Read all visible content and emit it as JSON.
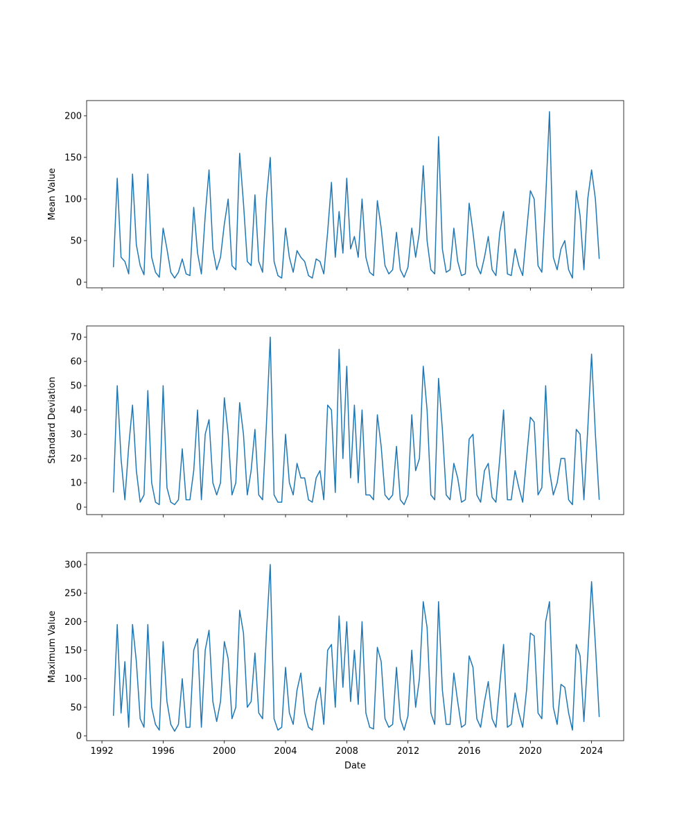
{
  "chart_data": [
    {
      "type": "line",
      "ylabel": "Mean Value",
      "xlim": [
        1991.0,
        2026.1
      ],
      "xticks": [
        1992,
        1996,
        2000,
        2004,
        2008,
        2012,
        2016,
        2020,
        2024
      ],
      "ylim": [
        -6.7,
        218.3
      ],
      "yticks": [
        0,
        50,
        100,
        150,
        200
      ],
      "x": [
        1992.75,
        1993,
        1993.25,
        1993.5,
        1993.75,
        1994,
        1994.25,
        1994.5,
        1994.75,
        1995,
        1995.25,
        1995.5,
        1995.75,
        1996,
        1996.25,
        1996.5,
        1996.75,
        1997,
        1997.25,
        1997.5,
        1997.75,
        1998,
        1998.25,
        1998.5,
        1998.75,
        1999,
        1999.25,
        1999.5,
        1999.75,
        2000,
        2000.25,
        2000.5,
        2000.75,
        2001,
        2001.25,
        2001.5,
        2001.75,
        2002,
        2002.25,
        2002.5,
        2002.75,
        2003,
        2003.25,
        2003.5,
        2003.75,
        2004,
        2004.25,
        2004.5,
        2004.75,
        2005,
        2005.25,
        2005.5,
        2005.75,
        2006,
        2006.25,
        2006.5,
        2006.75,
        2007,
        2007.25,
        2007.5,
        2007.75,
        2008,
        2008.25,
        2008.5,
        2008.75,
        2009,
        2009.25,
        2009.5,
        2009.75,
        2010,
        2010.25,
        2010.5,
        2010.75,
        2011,
        2011.25,
        2011.5,
        2011.75,
        2012,
        2012.25,
        2012.5,
        2012.75,
        2013,
        2013.25,
        2013.5,
        2013.75,
        2014,
        2014.25,
        2014.5,
        2014.75,
        2015,
        2015.25,
        2015.5,
        2015.75,
        2016,
        2016.25,
        2016.5,
        2016.75,
        2017,
        2017.25,
        2017.5,
        2017.75,
        2018,
        2018.25,
        2018.5,
        2018.75,
        2019,
        2019.25,
        2019.5,
        2019.75,
        2020,
        2020.25,
        2020.5,
        2020.75,
        2021,
        2021.25,
        2021.5,
        2021.75,
        2022,
        2022.25,
        2022.5,
        2022.75,
        2023,
        2023.25,
        2023.5,
        2023.75,
        2024,
        2024.25,
        2024.5
      ],
      "series": [
        {
          "color": "#1f77b4",
          "values": [
            18,
            125,
            30,
            25,
            10,
            130,
            45,
            20,
            9,
            130,
            30,
            12,
            6,
            65,
            40,
            12,
            5,
            12,
            28,
            10,
            8,
            90,
            35,
            10,
            80,
            135,
            40,
            15,
            30,
            70,
            100,
            20,
            15,
            155,
            95,
            25,
            20,
            105,
            25,
            12,
            100,
            150,
            25,
            8,
            5,
            65,
            30,
            12,
            38,
            30,
            25,
            8,
            5,
            28,
            25,
            10,
            60,
            120,
            30,
            85,
            35,
            125,
            40,
            55,
            30,
            100,
            30,
            12,
            8,
            98,
            65,
            20,
            10,
            15,
            60,
            15,
            6,
            18,
            65,
            30,
            60,
            140,
            50,
            15,
            10,
            175,
            40,
            12,
            15,
            65,
            25,
            8,
            10,
            95,
            60,
            20,
            10,
            30,
            55,
            15,
            8,
            60,
            85,
            10,
            8,
            40,
            20,
            8,
            60,
            110,
            100,
            20,
            12,
            100,
            205,
            30,
            15,
            40,
            50,
            15,
            5,
            110,
            80,
            15,
            100,
            135,
            100,
            28
          ]
        }
      ]
    },
    {
      "type": "line",
      "ylabel": "Standard Deviation",
      "xlim": [
        1991.0,
        2026.1
      ],
      "xticks": [
        1992,
        1996,
        2000,
        2004,
        2008,
        2012,
        2016,
        2020,
        2024
      ],
      "ylim": [
        -3.1,
        74.6
      ],
      "yticks": [
        0,
        10,
        20,
        30,
        40,
        50,
        60,
        70
      ],
      "x": [
        1992.75,
        1993,
        1993.25,
        1993.5,
        1993.75,
        1994,
        1994.25,
        1994.5,
        1994.75,
        1995,
        1995.25,
        1995.5,
        1995.75,
        1996,
        1996.25,
        1996.5,
        1996.75,
        1997,
        1997.25,
        1997.5,
        1997.75,
        1998,
        1998.25,
        1998.5,
        1998.75,
        1999,
        1999.25,
        1999.5,
        1999.75,
        2000,
        2000.25,
        2000.5,
        2000.75,
        2001,
        2001.25,
        2001.5,
        2001.75,
        2002,
        2002.25,
        2002.5,
        2002.75,
        2003,
        2003.25,
        2003.5,
        2003.75,
        2004,
        2004.25,
        2004.5,
        2004.75,
        2005,
        2005.25,
        2005.5,
        2005.75,
        2006,
        2006.25,
        2006.5,
        2006.75,
        2007,
        2007.25,
        2007.5,
        2007.75,
        2008,
        2008.25,
        2008.5,
        2008.75,
        2009,
        2009.25,
        2009.5,
        2009.75,
        2010,
        2010.25,
        2010.5,
        2010.75,
        2011,
        2011.25,
        2011.5,
        2011.75,
        2012,
        2012.25,
        2012.5,
        2012.75,
        2013,
        2013.25,
        2013.5,
        2013.75,
        2014,
        2014.25,
        2014.5,
        2014.75,
        2015,
        2015.25,
        2015.5,
        2015.75,
        2016,
        2016.25,
        2016.5,
        2016.75,
        2017,
        2017.25,
        2017.5,
        2017.75,
        2018,
        2018.25,
        2018.5,
        2018.75,
        2019,
        2019.25,
        2019.5,
        2019.75,
        2020,
        2020.25,
        2020.5,
        2020.75,
        2021,
        2021.25,
        2021.5,
        2021.75,
        2022,
        2022.25,
        2022.5,
        2022.75,
        2023,
        2023.25,
        2023.5,
        2023.75,
        2024,
        2024.25,
        2024.5
      ],
      "series": [
        {
          "color": "#1f77b4",
          "values": [
            6,
            50,
            20,
            3,
            25,
            42,
            15,
            2,
            5,
            48,
            10,
            2,
            1,
            50,
            8,
            2,
            1,
            3,
            24,
            3,
            3,
            15,
            40,
            3,
            30,
            36,
            10,
            5,
            10,
            45,
            30,
            5,
            10,
            43,
            30,
            5,
            15,
            32,
            5,
            3,
            34,
            70,
            5,
            2,
            2,
            30,
            10,
            5,
            18,
            12,
            12,
            3,
            2,
            12,
            15,
            3,
            42,
            40,
            6,
            65,
            20,
            58,
            12,
            42,
            10,
            40,
            5,
            5,
            3,
            38,
            25,
            5,
            3,
            5,
            25,
            3,
            1,
            5,
            38,
            15,
            20,
            58,
            40,
            5,
            3,
            53,
            32,
            5,
            3,
            18,
            12,
            2,
            3,
            28,
            30,
            5,
            2,
            15,
            18,
            4,
            2,
            20,
            40,
            3,
            3,
            15,
            8,
            2,
            20,
            37,
            35,
            5,
            8,
            50,
            15,
            5,
            10,
            20,
            20,
            3,
            1,
            32,
            30,
            3,
            32,
            63,
            30,
            3
          ]
        }
      ]
    },
    {
      "type": "line",
      "xlabel": "Date",
      "ylabel": "Maximum Value",
      "xlim": [
        1991.0,
        2026.1
      ],
      "xticks": [
        1992,
        1996,
        2000,
        2004,
        2008,
        2012,
        2016,
        2020,
        2024
      ],
      "ylim": [
        -8.5,
        320.7
      ],
      "yticks": [
        0,
        50,
        100,
        150,
        200,
        250,
        300
      ],
      "x": [
        1992.75,
        1993,
        1993.25,
        1993.5,
        1993.75,
        1994,
        1994.25,
        1994.5,
        1994.75,
        1995,
        1995.25,
        1995.5,
        1995.75,
        1996,
        1996.25,
        1996.5,
        1996.75,
        1997,
        1997.25,
        1997.5,
        1997.75,
        1998,
        1998.25,
        1998.5,
        1998.75,
        1999,
        1999.25,
        1999.5,
        1999.75,
        2000,
        2000.25,
        2000.5,
        2000.75,
        2001,
        2001.25,
        2001.5,
        2001.75,
        2002,
        2002.25,
        2002.5,
        2002.75,
        2003,
        2003.25,
        2003.5,
        2003.75,
        2004,
        2004.25,
        2004.5,
        2004.75,
        2005,
        2005.25,
        2005.5,
        2005.75,
        2006,
        2006.25,
        2006.5,
        2006.75,
        2007,
        2007.25,
        2007.5,
        2007.75,
        2008,
        2008.25,
        2008.5,
        2008.75,
        2009,
        2009.25,
        2009.5,
        2009.75,
        2010,
        2010.25,
        2010.5,
        2010.75,
        2011,
        2011.25,
        2011.5,
        2011.75,
        2012,
        2012.25,
        2012.5,
        2012.75,
        2013,
        2013.25,
        2013.5,
        2013.75,
        2014,
        2014.25,
        2014.5,
        2014.75,
        2015,
        2015.25,
        2015.5,
        2015.75,
        2016,
        2016.25,
        2016.5,
        2016.75,
        2017,
        2017.25,
        2017.5,
        2017.75,
        2018,
        2018.25,
        2018.5,
        2018.75,
        2019,
        2019.25,
        2019.5,
        2019.75,
        2020,
        2020.25,
        2020.5,
        2020.75,
        2021,
        2021.25,
        2021.5,
        2021.75,
        2022,
        2022.25,
        2022.5,
        2022.75,
        2023,
        2023.25,
        2023.5,
        2023.75,
        2024,
        2024.25,
        2024.5
      ],
      "series": [
        {
          "color": "#1f77b4",
          "values": [
            35,
            195,
            40,
            130,
            15,
            195,
            130,
            30,
            15,
            195,
            50,
            20,
            10,
            165,
            60,
            20,
            8,
            20,
            100,
            15,
            15,
            150,
            170,
            15,
            150,
            185,
            60,
            25,
            60,
            165,
            135,
            30,
            50,
            220,
            180,
            50,
            60,
            145,
            40,
            30,
            180,
            300,
            30,
            10,
            15,
            120,
            40,
            20,
            80,
            110,
            40,
            15,
            10,
            60,
            85,
            20,
            150,
            160,
            50,
            210,
            85,
            200,
            60,
            150,
            55,
            200,
            40,
            15,
            12,
            155,
            130,
            30,
            15,
            20,
            120,
            30,
            10,
            35,
            150,
            50,
            100,
            235,
            190,
            40,
            20,
            235,
            80,
            20,
            20,
            110,
            60,
            15,
            20,
            140,
            120,
            30,
            15,
            60,
            95,
            30,
            15,
            90,
            160,
            15,
            20,
            75,
            40,
            15,
            80,
            180,
            175,
            40,
            30,
            200,
            235,
            50,
            20,
            90,
            85,
            40,
            10,
            160,
            140,
            25,
            140,
            270,
            160,
            33
          ]
        }
      ]
    }
  ]
}
